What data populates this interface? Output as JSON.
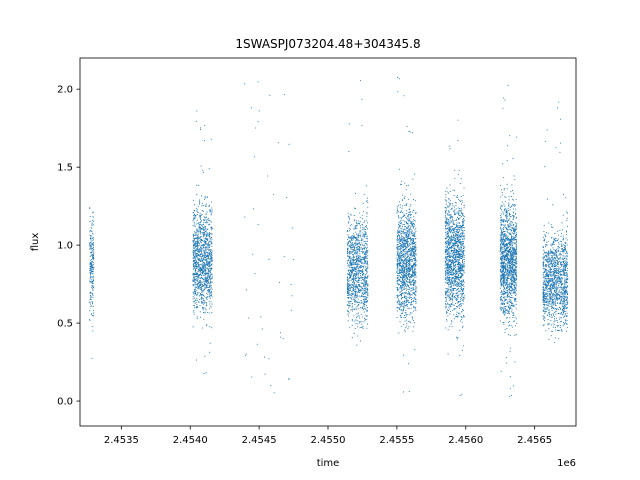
{
  "chart_data": {
    "type": "scatter",
    "title": "1SWASPJ073204.48+304345.8",
    "xlabel": "time",
    "ylabel": "flux",
    "x_offset_text": "1e6",
    "x_tick_labels": [
      "2.4535",
      "2.4540",
      "2.4545",
      "2.4550",
      "2.4555",
      "2.4560",
      "2.4565"
    ],
    "x_ticks": [
      2453500,
      2454000,
      2454500,
      2455000,
      2455500,
      2456000,
      2456500
    ],
    "y_ticks": [
      0.0,
      0.5,
      1.0,
      1.5,
      2.0
    ],
    "y_tick_labels": [
      "0.0",
      "0.5",
      "1.0",
      "1.5",
      "2.0"
    ],
    "xlim": [
      2453200,
      2456800
    ],
    "ylim": [
      -0.16,
      2.2
    ],
    "grid": false,
    "legend": "none",
    "marker_color": "#1f77b4",
    "clusters": [
      {
        "x_start": 2453270,
        "x_end": 2453300,
        "y_center": 0.88,
        "y_spread": 0.28,
        "y_min": -0.06,
        "y_max": 1.83,
        "points": 220
      },
      {
        "x_start": 2454020,
        "x_end": 2454160,
        "y_center": 0.9,
        "y_spread": 0.3,
        "y_min": 0.15,
        "y_max": 1.98,
        "points": 1200
      },
      {
        "x_start": 2454390,
        "x_end": 2454760,
        "y_center": 0.9,
        "y_spread": 0.5,
        "y_min": 0.05,
        "y_max": 2.08,
        "points": 45
      },
      {
        "x_start": 2455140,
        "x_end": 2455290,
        "y_center": 0.85,
        "y_spread": 0.3,
        "y_min": 0.0,
        "y_max": 2.07,
        "points": 1100
      },
      {
        "x_start": 2455500,
        "x_end": 2455640,
        "y_center": 0.9,
        "y_spread": 0.32,
        "y_min": 0.0,
        "y_max": 2.1,
        "points": 1300
      },
      {
        "x_start": 2455850,
        "x_end": 2455990,
        "y_center": 0.92,
        "y_spread": 0.34,
        "y_min": 0.0,
        "y_max": 2.02,
        "points": 1400
      },
      {
        "x_start": 2456250,
        "x_end": 2456370,
        "y_center": 0.9,
        "y_spread": 0.33,
        "y_min": 0.0,
        "y_max": 2.08,
        "points": 1400
      },
      {
        "x_start": 2456560,
        "x_end": 2456740,
        "y_center": 0.78,
        "y_spread": 0.26,
        "y_min": 0.05,
        "y_max": 1.93,
        "points": 1300
      }
    ]
  }
}
